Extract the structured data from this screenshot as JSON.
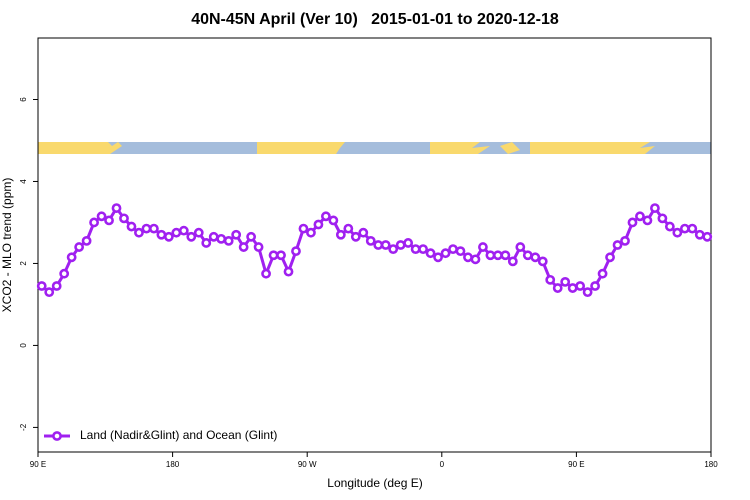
{
  "chart_data": {
    "type": "line",
    "title": "40N-45N April (Ver 10)   2015-01-01 to 2020-12-18",
    "x_label": "Longitude (deg E)",
    "y_label": "XCO2 - MLO trend (ppm)",
    "xlim": [
      90,
      540
    ],
    "ylim": [
      -2.6,
      7.5
    ],
    "xticks": [
      {
        "value": 90,
        "label": "90 E"
      },
      180,
      {
        "value": 270,
        "label": "90 W"
      },
      {
        "value": 360,
        "label": "0"
      },
      {
        "value": 450,
        "label": "90 E"
      },
      {
        "value": 540,
        "label": "180"
      }
    ],
    "yticks": [
      -2,
      0,
      2,
      4,
      6
    ],
    "legend": "bottomleft",
    "x": [
      92.5,
      97.5,
      102.5,
      107.5,
      112.5,
      117.5,
      122.5,
      127.5,
      132.5,
      137.5,
      142.5,
      147.5,
      152.5,
      157.5,
      162.5,
      167.5,
      172.5,
      177.5,
      182.5,
      187.5,
      192.5,
      197.5,
      202.5,
      207.5,
      212.5,
      217.5,
      222.5,
      227.5,
      232.5,
      237.5,
      242.5,
      247.5,
      252.5,
      257.5,
      262.5,
      267.5,
      272.5,
      277.5,
      282.5,
      287.5,
      292.5,
      297.5,
      302.5,
      307.5,
      312.5,
      317.5,
      322.5,
      327.5,
      332.5,
      337.5,
      342.5,
      347.5,
      352.5,
      357.5,
      362.5,
      367.5,
      372.5,
      377.5,
      382.5,
      387.5,
      392.5,
      397.5,
      402.5,
      407.5,
      412.5,
      417.5,
      422.5,
      427.5,
      432.5,
      437.5,
      442.5,
      447.5,
      452.5,
      457.5,
      462.5,
      467.5,
      472.5,
      477.5,
      482.5,
      487.5,
      492.5,
      497.5,
      502.5,
      507.5,
      512.5,
      517.5,
      522.5,
      527.5,
      532.5,
      537.5
    ],
    "series": [
      {
        "name": "Land (Nadir&Glint) and Ocean (Glint)",
        "color": "#a020f0",
        "values": [
          1.45,
          1.3,
          1.45,
          1.75,
          2.15,
          2.4,
          2.55,
          3.0,
          3.15,
          3.05,
          3.35,
          3.1,
          2.9,
          2.75,
          2.85,
          2.85,
          2.7,
          2.65,
          2.75,
          2.8,
          2.65,
          2.75,
          2.5,
          2.65,
          2.6,
          2.55,
          2.7,
          2.4,
          2.65,
          2.4,
          1.75,
          2.2,
          2.2,
          1.8,
          2.3,
          2.85,
          2.75,
          2.95,
          3.15,
          3.05,
          2.7,
          2.85,
          2.65,
          2.75,
          2.55,
          2.45,
          2.45,
          2.35,
          2.45,
          2.5,
          2.35,
          2.35,
          2.25,
          2.15,
          2.25,
          2.35,
          2.3,
          2.15,
          2.1,
          2.4,
          2.2,
          2.2,
          2.2,
          2.05,
          2.4,
          2.2,
          2.15,
          2.05,
          1.6,
          1.4,
          1.55,
          1.4,
          1.45,
          1.3,
          1.45,
          1.75,
          2.15,
          2.45,
          2.55,
          3.0,
          3.15,
          3.05,
          3.35,
          3.1,
          2.9,
          2.75,
          2.85,
          2.85,
          2.7,
          2.65
        ]
      }
    ]
  }
}
